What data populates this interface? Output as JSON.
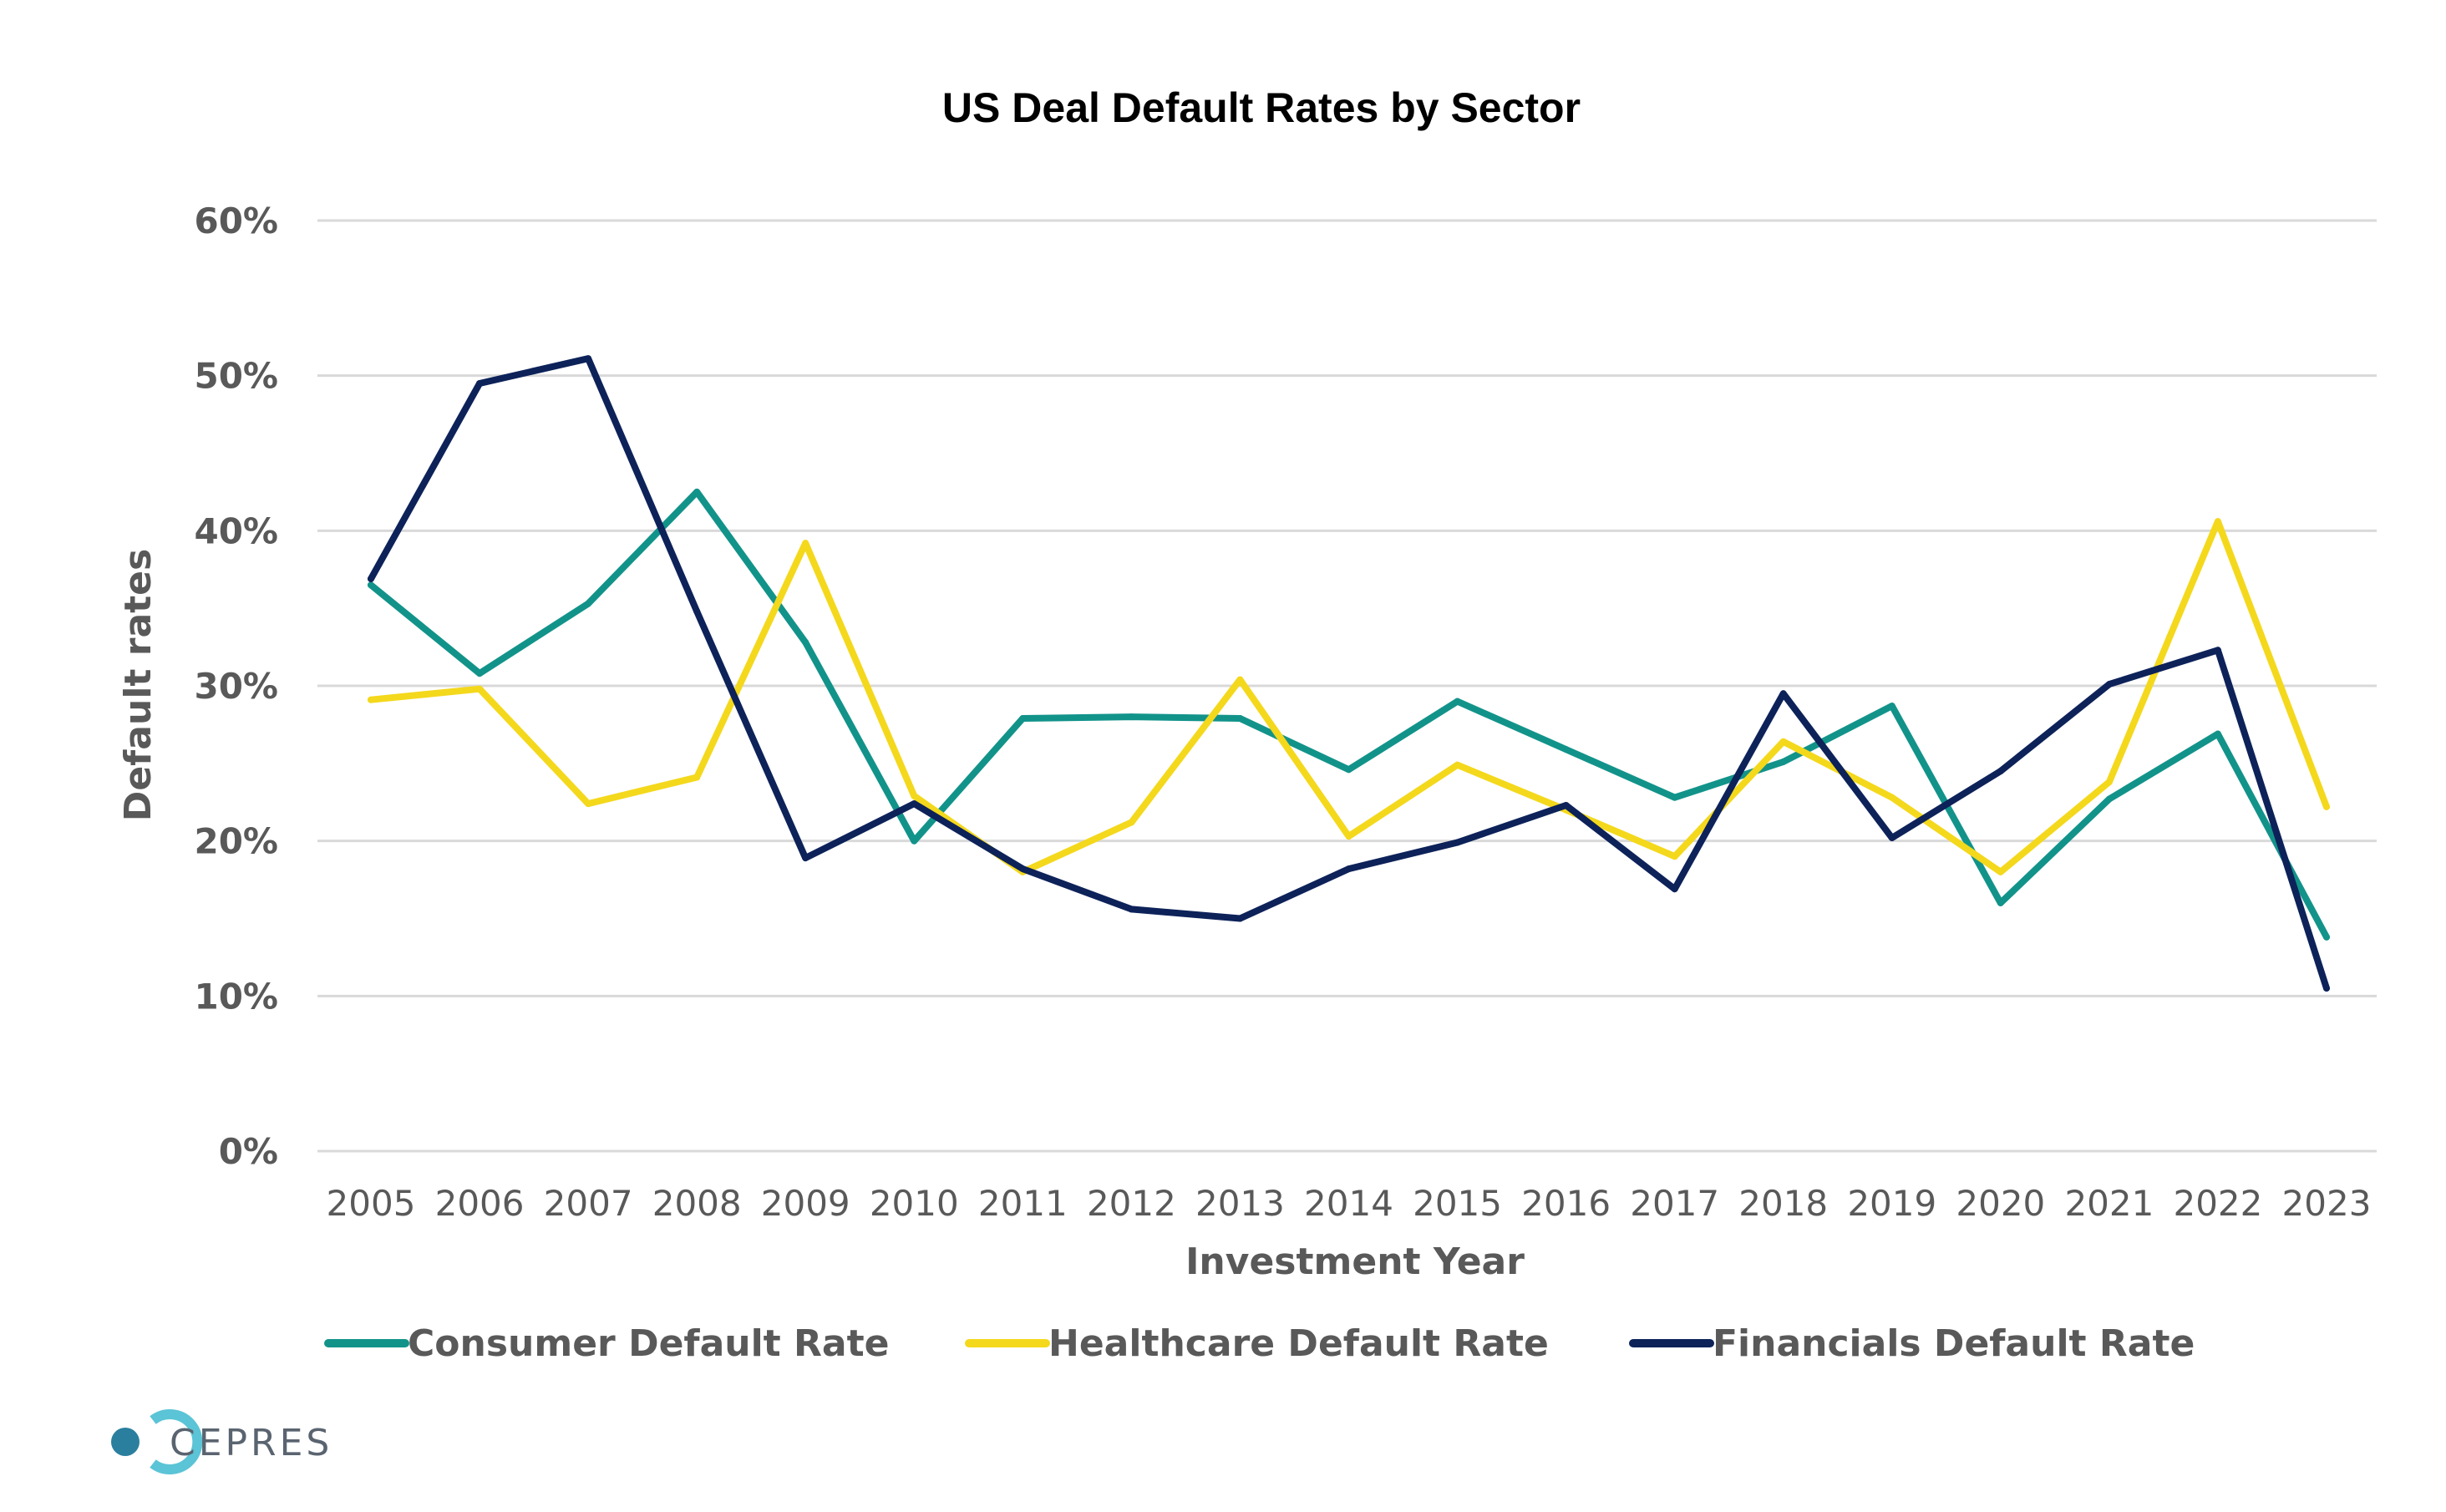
{
  "chart_data": {
    "type": "line",
    "title": "US Deal Default Rates by Sector",
    "xlabel": "Investment Year",
    "ylabel": "Default rates",
    "ylim": [
      0,
      60
    ],
    "yticks": [
      0,
      10,
      20,
      30,
      40,
      50,
      60
    ],
    "ytick_labels": [
      "0%",
      "10%",
      "20%",
      "30%",
      "40%",
      "50%",
      "60%"
    ],
    "categories": [
      "2005",
      "2006",
      "2007",
      "2008",
      "2009",
      "2010",
      "2011",
      "2012",
      "2013",
      "2014",
      "2015",
      "2016",
      "2017",
      "2018",
      "2019",
      "2020",
      "2021",
      "2022",
      "2023"
    ],
    "grid": true,
    "legend_position": "bottom",
    "series": [
      {
        "name": "Consumer Default Rate",
        "color": "#12938a",
        "values": [
          36.5,
          30.8,
          35.3,
          42.5,
          32.8,
          20.0,
          27.9,
          28.0,
          27.9,
          24.6,
          29.0,
          25.9,
          22.8,
          25.1,
          28.7,
          16.0,
          22.7,
          26.9,
          13.8
        ]
      },
      {
        "name": "Healthcare Default Rate",
        "color": "#f4d81c",
        "values": [
          29.1,
          29.8,
          22.4,
          24.1,
          39.2,
          22.9,
          18.0,
          21.2,
          30.4,
          20.3,
          24.9,
          22.0,
          19.0,
          26.4,
          22.8,
          18.0,
          23.8,
          40.6,
          22.2
        ]
      },
      {
        "name": "Financials Default Rate",
        "color": "#0d2259",
        "values": [
          36.9,
          49.5,
          51.1,
          34.8,
          18.9,
          22.4,
          18.2,
          15.6,
          15.0,
          18.2,
          19.9,
          22.3,
          16.9,
          29.5,
          20.2,
          24.5,
          30.1,
          32.3,
          10.5
        ]
      }
    ]
  },
  "brand": {
    "name": "CEPRES",
    "logo_colors": [
      "#2a7f9e",
      "#5bc4d6"
    ]
  }
}
